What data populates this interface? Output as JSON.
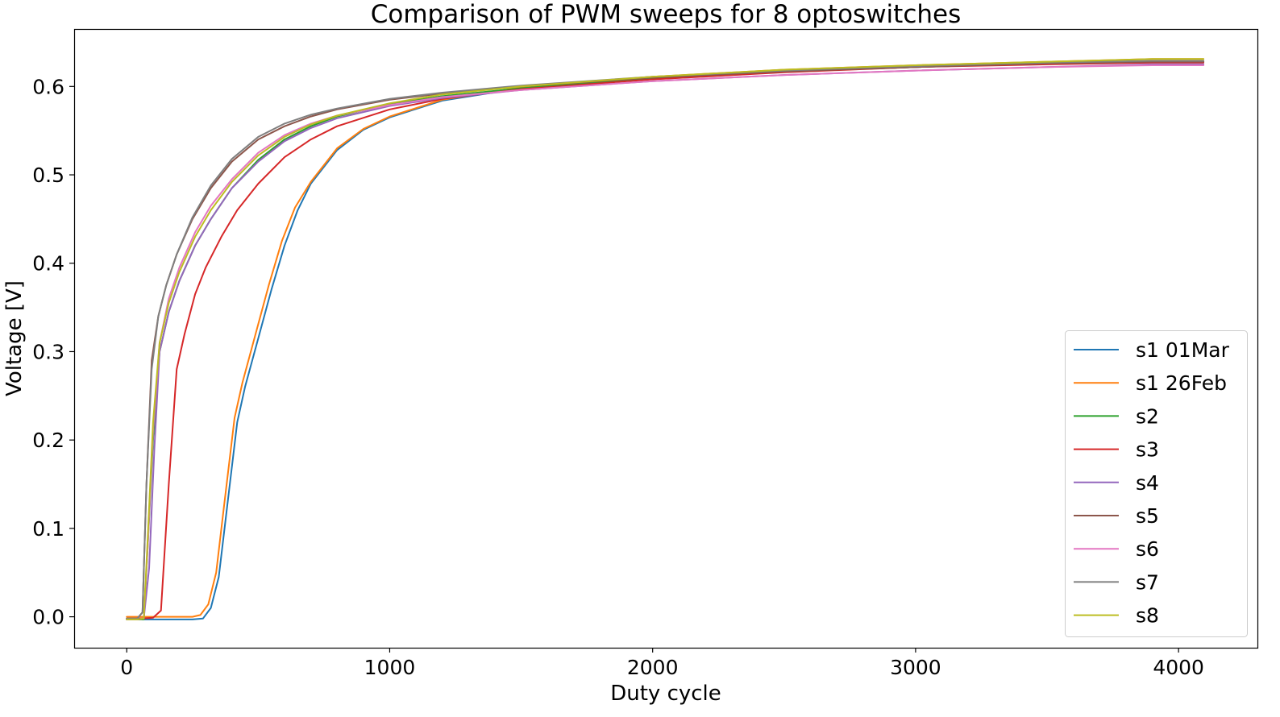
{
  "chart_data": {
    "type": "line",
    "title": "Comparison of PWM sweeps for 8 optoswitches",
    "xlabel": "Duty cycle",
    "ylabel": "Voltage [V]",
    "xlim": [
      -200,
      4300
    ],
    "ylim": [
      -0.035,
      0.665
    ],
    "xticks": [
      0,
      1000,
      2000,
      3000,
      4000
    ],
    "xtick_labels": [
      "0",
      "1000",
      "2000",
      "3000",
      "4000"
    ],
    "yticks": [
      0.0,
      0.1,
      0.2,
      0.3,
      0.4,
      0.5,
      0.6
    ],
    "ytick_labels": [
      "0.0",
      "0.1",
      "0.2",
      "0.3",
      "0.4",
      "0.5",
      "0.6"
    ],
    "grid": false,
    "legend_position": "lower-right",
    "series": [
      {
        "name": "s1 01Mar",
        "color": "#1f77b4",
        "x": [
          0,
          100,
          200,
          250,
          290,
          320,
          350,
          380,
          420,
          450,
          500,
          550,
          600,
          650,
          700,
          800,
          900,
          1000,
          1200,
          1500,
          2000,
          2500,
          3000,
          3500,
          3900,
          4095
        ],
        "y": [
          -0.003,
          -0.003,
          -0.003,
          -0.003,
          -0.002,
          0.01,
          0.045,
          0.12,
          0.22,
          0.26,
          0.315,
          0.37,
          0.42,
          0.46,
          0.49,
          0.528,
          0.551,
          0.565,
          0.584,
          0.598,
          0.61,
          0.617,
          0.622,
          0.626,
          0.628,
          0.628
        ]
      },
      {
        "name": "s1 26Feb",
        "color": "#ff7f0e",
        "x": [
          0,
          100,
          200,
          250,
          280,
          310,
          340,
          370,
          410,
          440,
          490,
          540,
          590,
          640,
          700,
          800,
          900,
          1000,
          1200,
          1500,
          2000,
          2500,
          3000,
          3500,
          3900,
          4095
        ],
        "y": [
          0.0,
          0.0,
          0.0,
          0.0,
          0.002,
          0.014,
          0.05,
          0.125,
          0.225,
          0.265,
          0.32,
          0.375,
          0.425,
          0.463,
          0.492,
          0.53,
          0.552,
          0.566,
          0.585,
          0.599,
          0.611,
          0.619,
          0.624,
          0.628,
          0.631,
          0.631
        ]
      },
      {
        "name": "s2",
        "color": "#2ca02c",
        "x": [
          0,
          40,
          65,
          80,
          100,
          125,
          160,
          200,
          260,
          320,
          400,
          500,
          600,
          700,
          800,
          1000,
          1200,
          1500,
          2000,
          2500,
          3000,
          3500,
          3900,
          4095
        ],
        "y": [
          -0.003,
          -0.003,
          -0.003,
          0.08,
          0.2,
          0.3,
          0.345,
          0.38,
          0.42,
          0.45,
          0.485,
          0.517,
          0.54,
          0.555,
          0.566,
          0.58,
          0.589,
          0.598,
          0.609,
          0.617,
          0.622,
          0.626,
          0.628,
          0.628
        ]
      },
      {
        "name": "s3",
        "color": "#d62728",
        "x": [
          0,
          60,
          100,
          130,
          160,
          190,
          220,
          260,
          300,
          360,
          420,
          500,
          600,
          700,
          800,
          1000,
          1200,
          1500,
          2000,
          2500,
          3000,
          3500,
          3900,
          4095
        ],
        "y": [
          -0.002,
          -0.002,
          -0.001,
          0.007,
          0.15,
          0.28,
          0.32,
          0.365,
          0.395,
          0.43,
          0.46,
          0.49,
          0.52,
          0.54,
          0.555,
          0.574,
          0.586,
          0.597,
          0.608,
          0.616,
          0.622,
          0.625,
          0.627,
          0.627
        ]
      },
      {
        "name": "s4",
        "color": "#9467bd",
        "x": [
          0,
          40,
          65,
          85,
          105,
          125,
          160,
          200,
          260,
          320,
          400,
          500,
          600,
          700,
          800,
          1000,
          1200,
          1500,
          2000,
          2500,
          3000,
          3500,
          3900,
          4095
        ],
        "y": [
          -0.003,
          -0.003,
          -0.002,
          0.055,
          0.19,
          0.3,
          0.345,
          0.38,
          0.42,
          0.45,
          0.485,
          0.515,
          0.538,
          0.553,
          0.564,
          0.578,
          0.587,
          0.596,
          0.606,
          0.613,
          0.618,
          0.622,
          0.625,
          0.625
        ]
      },
      {
        "name": "s5",
        "color": "#8c564b",
        "x": [
          0,
          40,
          60,
          75,
          95,
          120,
          150,
          190,
          250,
          320,
          400,
          500,
          600,
          700,
          800,
          1000,
          1200,
          1500,
          2000,
          2500,
          3000,
          3500,
          3900,
          4095
        ],
        "y": [
          -0.002,
          -0.002,
          0.005,
          0.15,
          0.29,
          0.34,
          0.375,
          0.41,
          0.45,
          0.485,
          0.515,
          0.54,
          0.555,
          0.566,
          0.574,
          0.585,
          0.592,
          0.6,
          0.61,
          0.617,
          0.622,
          0.626,
          0.628,
          0.628
        ]
      },
      {
        "name": "s6",
        "color": "#e377c2",
        "x": [
          0,
          40,
          65,
          80,
          100,
          125,
          160,
          200,
          260,
          320,
          400,
          500,
          600,
          700,
          800,
          1000,
          1200,
          1500,
          2000,
          2500,
          3000,
          3500,
          3900,
          4095
        ],
        "y": [
          -0.003,
          -0.003,
          -0.002,
          0.08,
          0.21,
          0.31,
          0.36,
          0.395,
          0.435,
          0.465,
          0.495,
          0.525,
          0.545,
          0.558,
          0.567,
          0.579,
          0.588,
          0.596,
          0.606,
          0.613,
          0.618,
          0.622,
          0.624,
          0.624
        ]
      },
      {
        "name": "s7",
        "color": "#7f7f7f",
        "x": [
          0,
          40,
          60,
          75,
          95,
          120,
          150,
          190,
          250,
          320,
          400,
          500,
          600,
          700,
          800,
          1000,
          1200,
          1500,
          2000,
          2500,
          3000,
          3500,
          3900,
          4095
        ],
        "y": [
          -0.002,
          -0.002,
          0.005,
          0.15,
          0.28,
          0.34,
          0.375,
          0.41,
          0.452,
          0.488,
          0.518,
          0.543,
          0.558,
          0.568,
          0.575,
          0.586,
          0.593,
          0.601,
          0.611,
          0.618,
          0.623,
          0.627,
          0.629,
          0.629
        ]
      },
      {
        "name": "s8",
        "color": "#bcbd22",
        "x": [
          0,
          40,
          65,
          80,
          100,
          125,
          160,
          200,
          260,
          320,
          400,
          500,
          600,
          700,
          800,
          1000,
          1200,
          1500,
          2000,
          2500,
          3000,
          3500,
          3900,
          4095
        ],
        "y": [
          -0.003,
          -0.003,
          -0.002,
          0.09,
          0.22,
          0.31,
          0.355,
          0.39,
          0.43,
          0.46,
          0.492,
          0.522,
          0.543,
          0.557,
          0.567,
          0.581,
          0.591,
          0.6,
          0.611,
          0.619,
          0.624,
          0.628,
          0.631,
          0.631
        ]
      }
    ]
  }
}
